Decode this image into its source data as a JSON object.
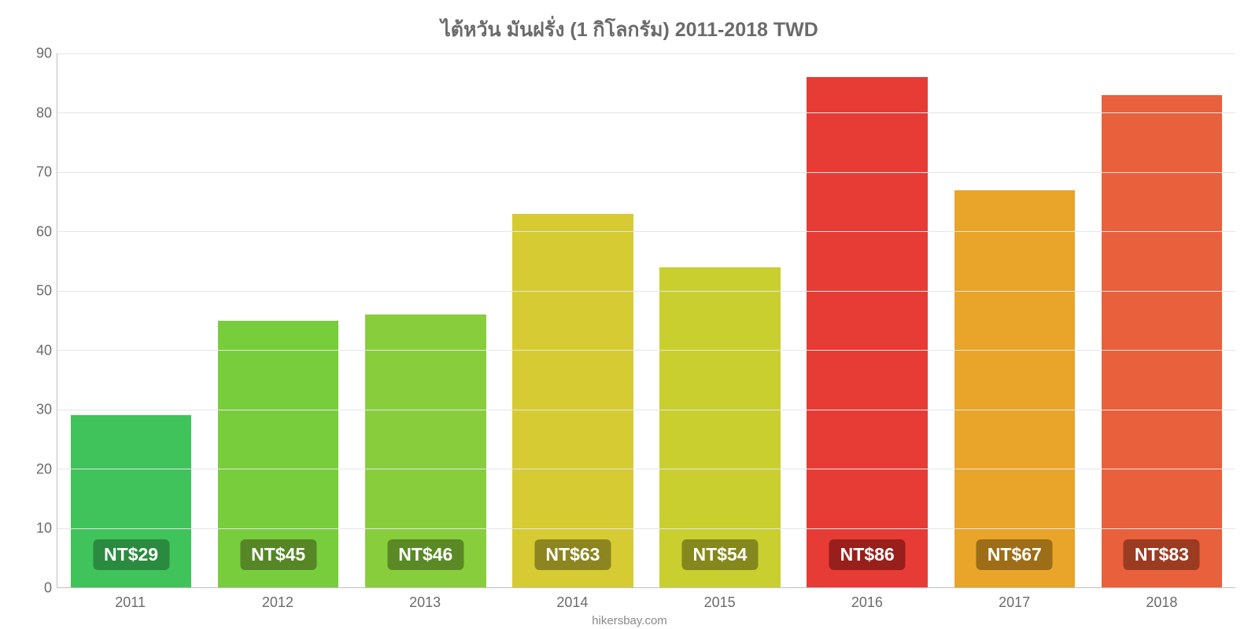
{
  "chart": {
    "type": "bar",
    "title": "ไต้หวัน มันฝรั่ง (1 กิโลกรัม) 2011-2018 TWD",
    "title_fontsize": 25,
    "title_color": "#6b6b6b",
    "background_color": "#ffffff",
    "grid_color": "#e5e5e5",
    "axis_color": "#bfbfbf",
    "tick_font_color": "#6b6b6b",
    "tick_fontsize": 18,
    "ylim": [
      0,
      90
    ],
    "ytick_step": 10,
    "yticks": [
      0,
      10,
      20,
      30,
      40,
      50,
      60,
      70,
      80,
      90
    ],
    "categories": [
      "2011",
      "2012",
      "2013",
      "2014",
      "2015",
      "2016",
      "2017",
      "2018"
    ],
    "values": [
      29,
      45,
      46,
      63,
      54,
      86,
      67,
      83
    ],
    "value_prefix": "NT$",
    "value_labels": [
      "NT$29",
      "NT$45",
      "NT$46",
      "NT$63",
      "NT$54",
      "NT$86",
      "NT$67",
      "NT$83"
    ],
    "bar_colors": [
      "#3fc35a",
      "#77cd3b",
      "#88ce3c",
      "#d6cb32",
      "#c9cf2f",
      "#e73c35",
      "#e9a42a",
      "#e9603c"
    ],
    "label_bg_colors": [
      "#2a8a3f",
      "#568626",
      "#5a8926",
      "#8c8520",
      "#84881d",
      "#981f1b",
      "#9d6d17",
      "#9b3b22"
    ],
    "label_text_color": "#ffffff",
    "label_fontsize": 23,
    "bar_width_ratio": 0.82,
    "footer": "hikersbay.com",
    "footer_color": "#8a8a8a",
    "footer_fontsize": 15
  }
}
